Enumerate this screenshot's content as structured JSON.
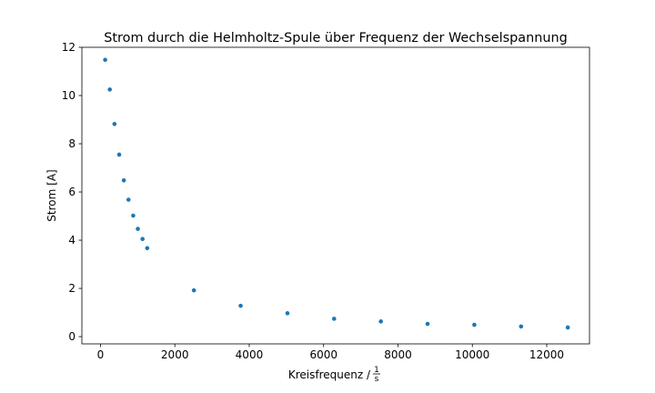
{
  "chart_data": {
    "type": "scatter",
    "title": "Strom durch die Helmholtz-Spule über Frequenz der Wechselspannung",
    "xlabel": "Kreisfrequenz /",
    "xlabel_unit_numerator": "1",
    "xlabel_unit_denominator": "s",
    "ylabel": "Strom [A]",
    "xlim": [
      -500,
      13150
    ],
    "ylim": [
      -0.3,
      12.0
    ],
    "xticks": [
      0,
      2000,
      4000,
      6000,
      8000,
      10000,
      12000
    ],
    "yticks": [
      0,
      2,
      4,
      6,
      8,
      10,
      12
    ],
    "grid": false,
    "marker_color": "#1f77b4",
    "series": [
      {
        "x": [
          126,
          251,
          377,
          503,
          628,
          754,
          880,
          1005,
          1131,
          1257,
          2513,
          3770,
          5027,
          6283,
          7540,
          8796,
          10053,
          11310,
          12566
        ],
        "y": [
          11.48,
          10.25,
          8.82,
          7.55,
          6.48,
          5.68,
          5.02,
          4.47,
          4.05,
          3.67,
          1.92,
          1.28,
          0.97,
          0.74,
          0.63,
          0.53,
          0.49,
          0.42,
          0.38
        ]
      }
    ]
  }
}
